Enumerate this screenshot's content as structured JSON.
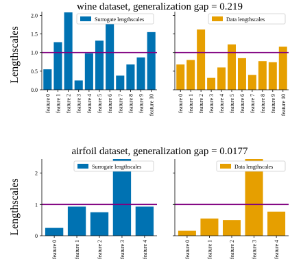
{
  "figure": {
    "panels": [
      {
        "title": "wine dataset, generalization gap = 0.219",
        "ylabel": "Lengthscales"
      },
      {
        "title": "airfoil dataset, generalization gap = 0.0177",
        "ylabel": "Lengthscales"
      }
    ]
  },
  "colors": {
    "surrogate": "#0072b2",
    "data": "#e69f00",
    "reference_line": "#800080"
  },
  "chart_data": [
    {
      "type": "bar",
      "panel": "wine dataset, generalization gap = 0.219",
      "ylabel": "Lengthscales",
      "categories": [
        "feature 0",
        "feature 1",
        "feature 2",
        "feature 3",
        "feature 4",
        "feature 5",
        "feature 6",
        "feature 7",
        "feature 8",
        "feature 9",
        "feature 10"
      ],
      "series": [
        {
          "name": "Surrogate lengthscales",
          "values": [
            0.55,
            1.28,
            2.08,
            0.25,
            0.98,
            1.32,
            1.88,
            0.38,
            0.68,
            0.87,
            1.55
          ]
        }
      ],
      "ylim": [
        0,
        2.1
      ],
      "yticks": [
        0.0,
        0.5,
        1.0,
        1.5,
        2.0
      ],
      "ytick_labels": [
        "0.0",
        "0.5",
        "1.0",
        "1.5",
        "2.0"
      ],
      "hline": 1.0,
      "legend": "top-right"
    },
    {
      "type": "bar",
      "panel": "wine dataset, generalization gap = 0.219",
      "categories": [
        "feature 0",
        "feature 1",
        "feature 2",
        "feature 3",
        "feature 4",
        "feature 5",
        "feature 6",
        "feature 7",
        "feature 8",
        "feature 9",
        "feature 10"
      ],
      "series": [
        {
          "name": "Data lengthscales",
          "values": [
            0.68,
            0.8,
            1.62,
            0.32,
            0.6,
            1.22,
            0.85,
            0.4,
            0.77,
            0.74,
            1.16
          ]
        }
      ],
      "ylim": [
        0,
        2.1
      ],
      "hline": 1.0,
      "legend": "top-right"
    },
    {
      "type": "bar",
      "panel": "airfoil dataset, generalization gap = 0.0177",
      "ylabel": "Lengthscales",
      "categories": [
        "feature 0",
        "feature 1",
        "feature 2",
        "feature 3",
        "feature 4"
      ],
      "series": [
        {
          "name": "Surrogate lengthscales",
          "values": [
            0.25,
            0.93,
            0.75,
            2.45,
            0.93
          ]
        }
      ],
      "ylim": [
        0,
        2.45
      ],
      "yticks": [
        0,
        1,
        2
      ],
      "ytick_labels": [
        "0",
        "1",
        "2"
      ],
      "hline": 1.0,
      "legend": "top-right"
    },
    {
      "type": "bar",
      "panel": "airfoil dataset, generalization gap = 0.0177",
      "categories": [
        "feature 0",
        "feature 1",
        "feature 2",
        "feature 3",
        "feature 4"
      ],
      "series": [
        {
          "name": "Data lengthscales",
          "values": [
            0.16,
            0.55,
            0.5,
            2.45,
            0.77
          ]
        }
      ],
      "ylim": [
        0,
        2.45
      ],
      "hline": 1.0,
      "legend": "top-right"
    }
  ]
}
